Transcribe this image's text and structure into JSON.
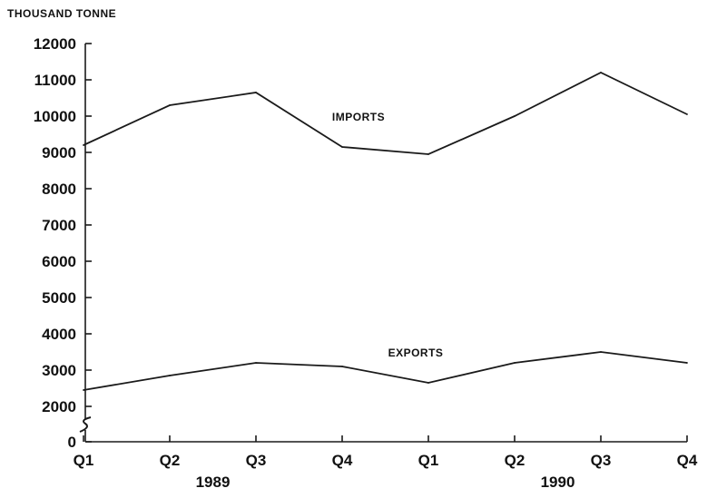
{
  "chart_data": {
    "type": "line",
    "unit_label": "THOUSAND TONNE",
    "categories": [
      "Q1",
      "Q2",
      "Q3",
      "Q4",
      "Q1",
      "Q2",
      "Q3",
      "Q4"
    ],
    "years": [
      "1989",
      "1990"
    ],
    "yticks": [
      0,
      2000,
      3000,
      4000,
      5000,
      6000,
      7000,
      8000,
      9000,
      10000,
      11000,
      12000
    ],
    "ylim": [
      0,
      12000
    ],
    "axis_break": true,
    "grid": false,
    "series": [
      {
        "name": "IMPORTS",
        "values": [
          9200,
          10300,
          10650,
          9150,
          8950,
          10000,
          11200,
          10050
        ]
      },
      {
        "name": "EXPORTS",
        "values": [
          2450,
          2850,
          3200,
          3100,
          2650,
          3200,
          3500,
          3200
        ]
      }
    ]
  }
}
